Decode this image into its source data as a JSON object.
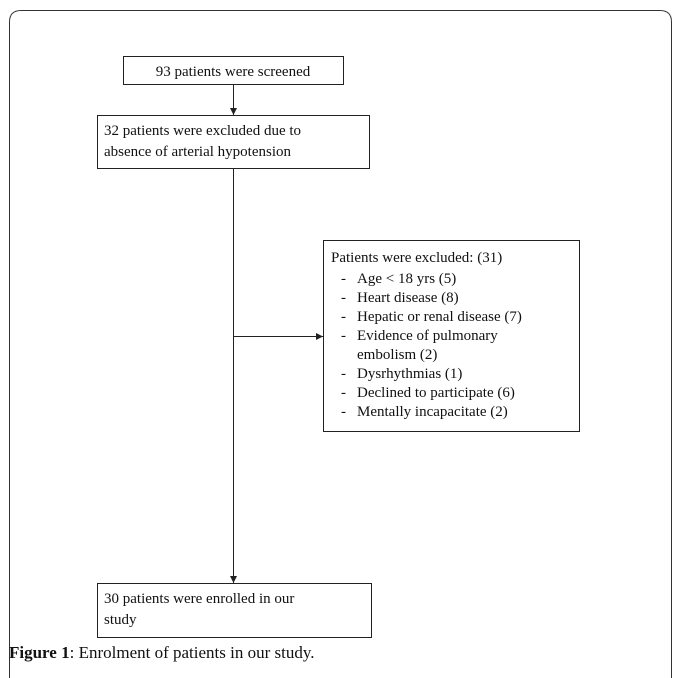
{
  "nodes": [
    {
      "lines": [
        "93 patients were screened"
      ]
    },
    {
      "lines": [
        "32 patients were excluded due to",
        "absence of arterial hypotension"
      ]
    },
    {
      "title": "Patients were excluded: (31)",
      "items": [
        "Age < 18 yrs (5)",
        "Heart disease (8)",
        "Hepatic or renal disease (7)",
        [
          "Evidence of pulmonary",
          "embolism (2)"
        ],
        "Dysrhythmias (1)",
        "Declined to participate (6)",
        "Mentally incapacitate (2)"
      ]
    },
    {
      "lines": [
        "30 patients were enrolled in our",
        "study"
      ]
    }
  ],
  "caption": {
    "label": "Figure 1",
    "text": ": Enrolment of patients in our study."
  }
}
